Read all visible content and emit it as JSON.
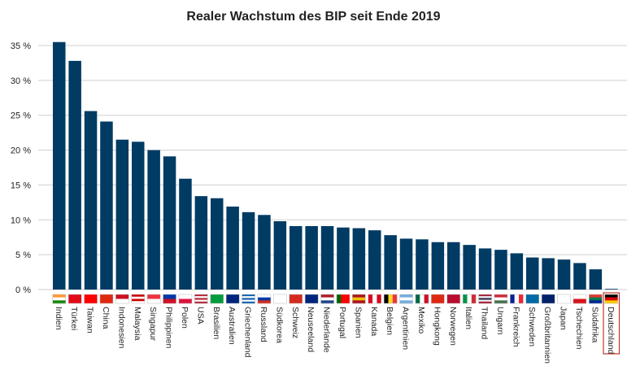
{
  "chart_data": {
    "type": "bar",
    "title": "Realer Wachstum des BIP seit Ende 2019",
    "xlabel": "",
    "ylabel": "",
    "ylim": [
      0,
      37.5
    ],
    "y_ticks": [
      "0 %",
      "5 %",
      "10 %",
      "15 %",
      "20 %",
      "25 %",
      "30 %",
      "35 %"
    ],
    "y_tick_values": [
      0,
      5,
      10,
      15,
      20,
      25,
      30,
      35
    ],
    "grid": true,
    "bar_color": "#003b64",
    "highlight_category": "Deutschland",
    "highlight_color": "#c0392b",
    "categories": [
      "Indien",
      "Türkei",
      "Taiwan",
      "China",
      "Indonesien",
      "Malaysia",
      "Singapur",
      "Philippinen",
      "Polen",
      "USA",
      "Brasilien",
      "Australien",
      "Griechenland",
      "Russland",
      "Südkorea",
      "Schweiz",
      "Neuseeland",
      "Niederlande",
      "Portugal",
      "Spanien",
      "Kanada",
      "Belgien",
      "Argentinien",
      "Mexiko",
      "Hongkong",
      "Norwegen",
      "Italien",
      "Thailand",
      "Ungarn",
      "Frankreich",
      "Schweden",
      "Großbritannien",
      "Japan",
      "Tschechien",
      "Südafrika",
      "Deutschland"
    ],
    "values": [
      35.5,
      32.8,
      25.6,
      24.1,
      21.5,
      21.2,
      20.0,
      19.1,
      15.9,
      13.4,
      13.1,
      11.9,
      11.1,
      10.7,
      9.8,
      9.1,
      9.1,
      9.1,
      8.9,
      8.8,
      8.5,
      7.8,
      7.3,
      7.2,
      6.8,
      6.8,
      6.4,
      5.9,
      5.7,
      5.2,
      4.6,
      4.5,
      4.3,
      3.8,
      2.9,
      0.1
    ],
    "flags": [
      {
        "type": "h",
        "colors": [
          "#ff9933",
          "#ffffff",
          "#138808"
        ]
      },
      {
        "type": "s",
        "colors": [
          "#e30a17"
        ]
      },
      {
        "type": "s",
        "colors": [
          "#fe0000"
        ]
      },
      {
        "type": "s",
        "colors": [
          "#de2910"
        ]
      },
      {
        "type": "h",
        "colors": [
          "#ce1126",
          "#ffffff"
        ]
      },
      {
        "type": "h",
        "colors": [
          "#cc0001",
          "#ffffff",
          "#cc0001",
          "#ffffff"
        ]
      },
      {
        "type": "h",
        "colors": [
          "#ef3340",
          "#ffffff"
        ]
      },
      {
        "type": "h",
        "colors": [
          "#0038a8",
          "#ce1126"
        ]
      },
      {
        "type": "h",
        "colors": [
          "#ffffff",
          "#dc143c"
        ]
      },
      {
        "type": "h",
        "colors": [
          "#b22234",
          "#ffffff",
          "#b22234",
          "#ffffff",
          "#b22234"
        ]
      },
      {
        "type": "s",
        "colors": [
          "#009c3b"
        ]
      },
      {
        "type": "s",
        "colors": [
          "#00247d"
        ]
      },
      {
        "type": "h",
        "colors": [
          "#0d5eaf",
          "#ffffff",
          "#0d5eaf",
          "#ffffff",
          "#0d5eaf"
        ]
      },
      {
        "type": "h",
        "colors": [
          "#ffffff",
          "#0039a6",
          "#d52b1e"
        ]
      },
      {
        "type": "s",
        "colors": [
          "#ffffff"
        ]
      },
      {
        "type": "s",
        "colors": [
          "#d52b1e"
        ]
      },
      {
        "type": "s",
        "colors": [
          "#00247d"
        ]
      },
      {
        "type": "h",
        "colors": [
          "#ae1c28",
          "#ffffff",
          "#21468b"
        ]
      },
      {
        "type": "v",
        "colors": [
          "#006600",
          "#ff0000",
          "#ff0000"
        ]
      },
      {
        "type": "h",
        "colors": [
          "#aa151b",
          "#f1bf00",
          "#aa151b"
        ]
      },
      {
        "type": "v",
        "colors": [
          "#d80621",
          "#ffffff",
          "#d80621"
        ]
      },
      {
        "type": "v",
        "colors": [
          "#000000",
          "#fdda24",
          "#ef3340"
        ]
      },
      {
        "type": "h",
        "colors": [
          "#74acdf",
          "#ffffff",
          "#74acdf"
        ]
      },
      {
        "type": "v",
        "colors": [
          "#006847",
          "#ffffff",
          "#ce1126"
        ]
      },
      {
        "type": "s",
        "colors": [
          "#de2910"
        ]
      },
      {
        "type": "s",
        "colors": [
          "#ba0c2f"
        ]
      },
      {
        "type": "v",
        "colors": [
          "#009246",
          "#ffffff",
          "#ce2b37"
        ]
      },
      {
        "type": "h",
        "colors": [
          "#a51931",
          "#f4f5f8",
          "#2d2a4a",
          "#f4f5f8",
          "#a51931"
        ]
      },
      {
        "type": "h",
        "colors": [
          "#ce2939",
          "#ffffff",
          "#477050"
        ]
      },
      {
        "type": "v",
        "colors": [
          "#002395",
          "#ffffff",
          "#ed2939"
        ]
      },
      {
        "type": "s",
        "colors": [
          "#006aa7"
        ]
      },
      {
        "type": "s",
        "colors": [
          "#012169"
        ]
      },
      {
        "type": "s",
        "colors": [
          "#ffffff"
        ]
      },
      {
        "type": "h",
        "colors": [
          "#ffffff",
          "#d7141a"
        ]
      },
      {
        "type": "h",
        "colors": [
          "#de3831",
          "#007a4d",
          "#002395"
        ]
      },
      {
        "type": "h",
        "colors": [
          "#000000",
          "#dd0000",
          "#ffce00"
        ]
      }
    ]
  }
}
